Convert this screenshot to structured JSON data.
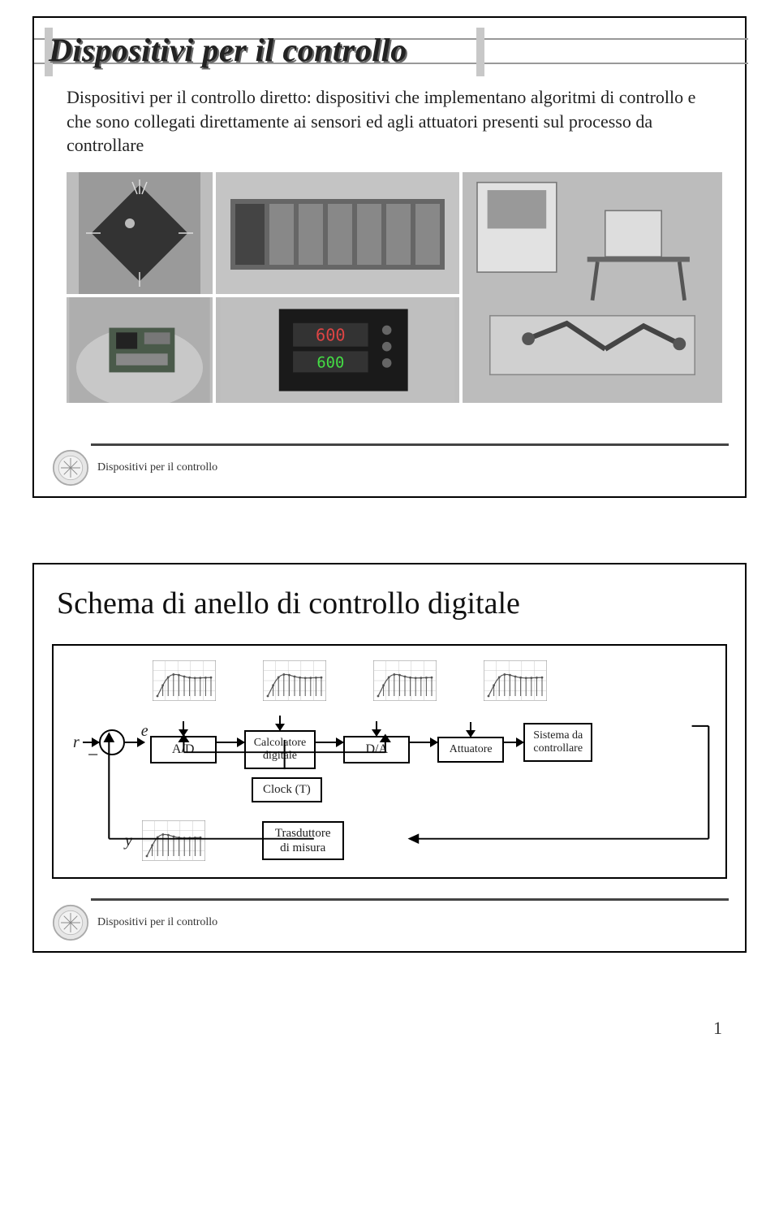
{
  "slide1": {
    "title": "Dispositivi per il controllo",
    "body": "Dispositivi per il controllo diretto: dispositivi che implementano algoritmi di controllo e che sono collegati direttamente ai sensori ed agli attuatori presenti sul processo da controllare",
    "footer": "Dispositivi per il controllo",
    "title_line_color": "#888888",
    "photo_bg": "#b8b8b8"
  },
  "slide2": {
    "title": "Schema di anello di controllo digitale",
    "labels": {
      "r": "r",
      "e": "e",
      "ad": "A/D",
      "calc_l1": "Calcolatore",
      "calc_l2": "digitale",
      "da": "D/A",
      "att": "Attuatore",
      "sys_l1": "Sistema da",
      "sys_l2": "controllare",
      "clock": "Clock (T)",
      "y": "y",
      "tras_l1": "Trasduttore",
      "tras_l2": "di misura"
    },
    "footer": "Dispositivi per il controllo",
    "mini_plot": {
      "frame_color": "#888888",
      "grid_color": "#c8c8c8",
      "curve_color": "#555555",
      "bg_color": "#ffffff"
    }
  },
  "page_number": "1",
  "colors": {
    "border": "#000000",
    "title_shadow": "#666666",
    "title_main": "#222222",
    "footer_rule": "#444444",
    "seal_ring": "#aaaaaa",
    "seal_fill": "#dddddd"
  }
}
